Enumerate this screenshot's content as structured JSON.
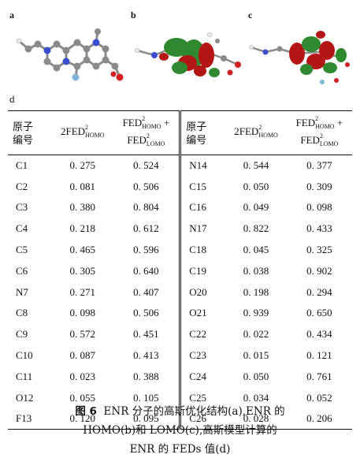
{
  "panels": {
    "a": "a",
    "b": "b",
    "c": "c",
    "d": "d"
  },
  "table": {
    "headers": {
      "atom_no_line1": "原子",
      "atom_no_line2": "编号",
      "col2_base": "2FED",
      "col2_sup": "2",
      "col2_sub": "HOMO",
      "col3_line1_base": "FED",
      "col3_line1_sup": "2",
      "col3_line1_sub": "HOMO",
      "col3_plus": "+",
      "col3_line2_base": "FED",
      "col3_line2_sup": "2",
      "col3_line2_sub": "LOMO"
    },
    "left_rows": [
      {
        "atom": "C1",
        "fed_homo": "0. 275",
        "fed_sum": "0. 524"
      },
      {
        "atom": "C2",
        "fed_homo": "0. 081",
        "fed_sum": "0. 506"
      },
      {
        "atom": "C3",
        "fed_homo": "0. 380",
        "fed_sum": "0. 804"
      },
      {
        "atom": "C4",
        "fed_homo": "0. 218",
        "fed_sum": "0. 612"
      },
      {
        "atom": "C5",
        "fed_homo": "0. 465",
        "fed_sum": "0. 596"
      },
      {
        "atom": "C6",
        "fed_homo": "0. 305",
        "fed_sum": "0. 640"
      },
      {
        "atom": "N7",
        "fed_homo": "0. 271",
        "fed_sum": "0. 407"
      },
      {
        "atom": "C8",
        "fed_homo": "0. 098",
        "fed_sum": "0. 506"
      },
      {
        "atom": "C9",
        "fed_homo": "0. 572",
        "fed_sum": "0. 451"
      },
      {
        "atom": "C10",
        "fed_homo": "0. 087",
        "fed_sum": "0. 413"
      },
      {
        "atom": "C11",
        "fed_homo": "0. 023",
        "fed_sum": "0. 388"
      },
      {
        "atom": "O12",
        "fed_homo": "0. 055",
        "fed_sum": "0. 105"
      },
      {
        "atom": "F13",
        "fed_homo": "0. 120",
        "fed_sum": "0. 095"
      }
    ],
    "right_rows": [
      {
        "atom": "N14",
        "fed_homo": "0. 544",
        "fed_sum": "0. 377"
      },
      {
        "atom": "C15",
        "fed_homo": "0. 050",
        "fed_sum": "0. 309"
      },
      {
        "atom": "C16",
        "fed_homo": "0. 049",
        "fed_sum": "0. 098"
      },
      {
        "atom": "N17",
        "fed_homo": "0. 822",
        "fed_sum": "0. 433"
      },
      {
        "atom": "C18",
        "fed_homo": "0. 045",
        "fed_sum": "0. 325"
      },
      {
        "atom": "C19",
        "fed_homo": "0. 038",
        "fed_sum": "0. 902"
      },
      {
        "atom": "O20",
        "fed_homo": "0. 198",
        "fed_sum": "0. 294"
      },
      {
        "atom": "O21",
        "fed_homo": "0. 939",
        "fed_sum": "0. 650"
      },
      {
        "atom": "C22",
        "fed_homo": "0. 022",
        "fed_sum": "0. 434"
      },
      {
        "atom": "C23",
        "fed_homo": "0. 015",
        "fed_sum": "0. 121"
      },
      {
        "atom": "C24",
        "fed_homo": "0. 050",
        "fed_sum": "0. 761"
      },
      {
        "atom": "C25",
        "fed_homo": "0. 034",
        "fed_sum": "0. 052"
      },
      {
        "atom": "C26",
        "fed_homo": "0. 028",
        "fed_sum": "0. 206"
      }
    ]
  },
  "caption": {
    "fig_label": "图 6",
    "line1": "ENR 分子的高斯优化结构(a),ENR 的",
    "line2": "HOMO(b)和 LOMO(c),高斯模型计算的",
    "line3": "ENR 的 FEDs 值(d)"
  },
  "colors": {
    "orbital_green": "#2f8a2f",
    "orbital_red": "#b41515",
    "carbon_gray": "#8a8a8a",
    "nitrogen_blue": "#3a4fd0",
    "oxygen_red": "#d42020",
    "fluorine_cyan": "#7fb6d6",
    "hydrogen_white": "#e8e8e8"
  }
}
